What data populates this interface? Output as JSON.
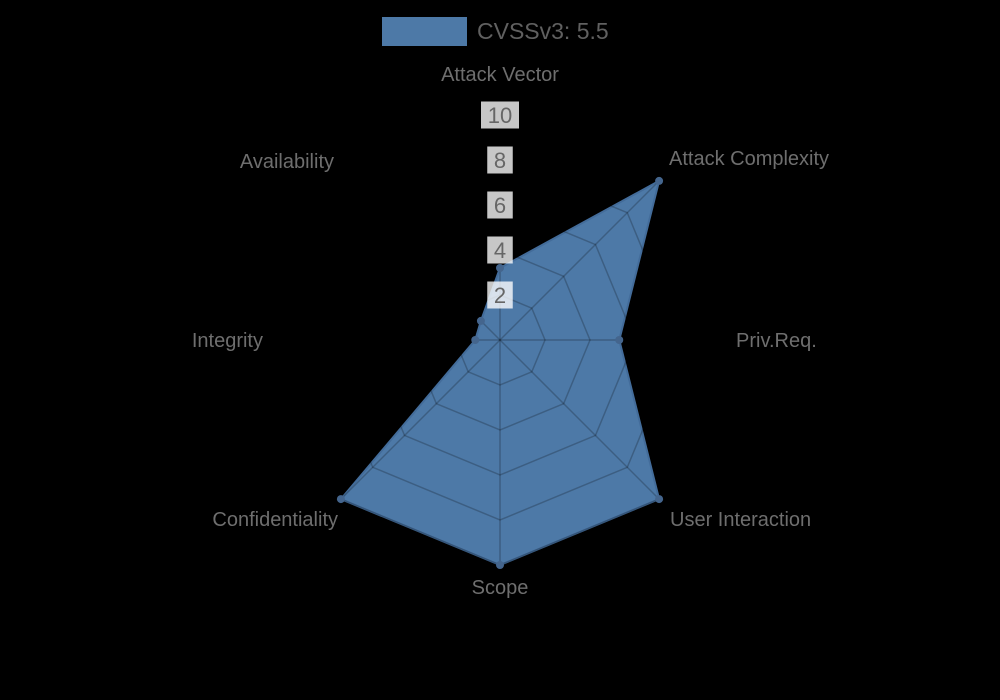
{
  "page": {
    "background": "#000000"
  },
  "legend": {
    "label": "CVSSv3: 5.5"
  },
  "chart_data": {
    "type": "radar",
    "title": "CVSSv3: 5.5",
    "categories": [
      "Attack Vector",
      "Attack Complexity",
      "Priv.Req.",
      "User Interaction",
      "Scope",
      "Confidentiality",
      "Integrity",
      "Availability"
    ],
    "series": [
      {
        "name": "CVSSv3: 5.5",
        "values": [
          3.2,
          10,
          5.3,
          10,
          10,
          10,
          1.1,
          1.2
        ]
      }
    ],
    "ticks": [
      2,
      4,
      6,
      8,
      10
    ],
    "range": [
      0,
      10
    ],
    "grid": "polygon-web",
    "legend_position": "top",
    "colors": {
      "fill": "#4d79a7",
      "stroke": "#436c9a",
      "point": "#44658d",
      "grid_line": "rgba(0,0,0,0.22)",
      "axis_label": "#6e6e6e",
      "tick_text": "#666666",
      "tick_backdrop": "rgba(255,255,255,0.78)",
      "legend_text": "#606060"
    }
  }
}
